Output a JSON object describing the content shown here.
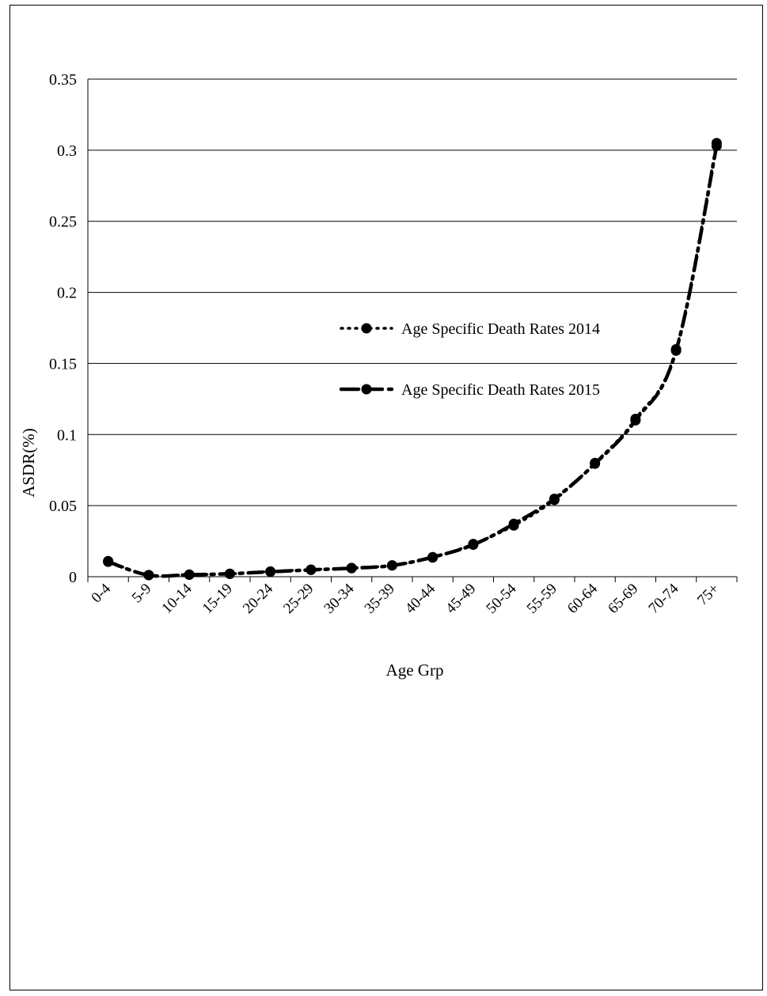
{
  "chart_data": {
    "type": "line",
    "title": "",
    "xlabel": "Age Grp",
    "ylabel": "ASDR(%)",
    "categories": [
      "0-4",
      "5-9",
      "10-14",
      "15-19",
      "20-24",
      "25-29",
      "30-34",
      "35-39",
      "40-44",
      "45-49",
      "50-54",
      "55-59",
      "60-64",
      "65-69",
      "70-74",
      "75+"
    ],
    "ylim": [
      0,
      0.35
    ],
    "yticks": [
      0,
      0.05,
      0.1,
      0.15,
      0.2,
      0.25,
      0.3,
      0.35
    ],
    "ytick_labels": [
      "0",
      "0.05",
      "0.1",
      "0.15",
      "0.2",
      "0.25",
      "0.3",
      "0.35"
    ],
    "grid": true,
    "legend_position": "center",
    "series": [
      {
        "name": "Age Specific Death Rates 2014",
        "line_style": "dotted",
        "marker": "circle",
        "color": "#000000",
        "values": [
          0.011,
          0.0012,
          0.0015,
          0.002,
          0.0037,
          0.005,
          0.0062,
          0.008,
          0.0135,
          0.023,
          0.036,
          0.054,
          0.08,
          0.111,
          0.16,
          0.305
        ]
      },
      {
        "name": "Age Specific Death Rates 2015",
        "line_style": "dash-dot",
        "marker": "circle",
        "color": "#000000",
        "values": [
          0.0105,
          0.0011,
          0.0014,
          0.0021,
          0.0035,
          0.0048,
          0.006,
          0.0079,
          0.0138,
          0.0225,
          0.0372,
          0.0548,
          0.0795,
          0.11,
          0.159,
          0.303
        ]
      }
    ]
  }
}
